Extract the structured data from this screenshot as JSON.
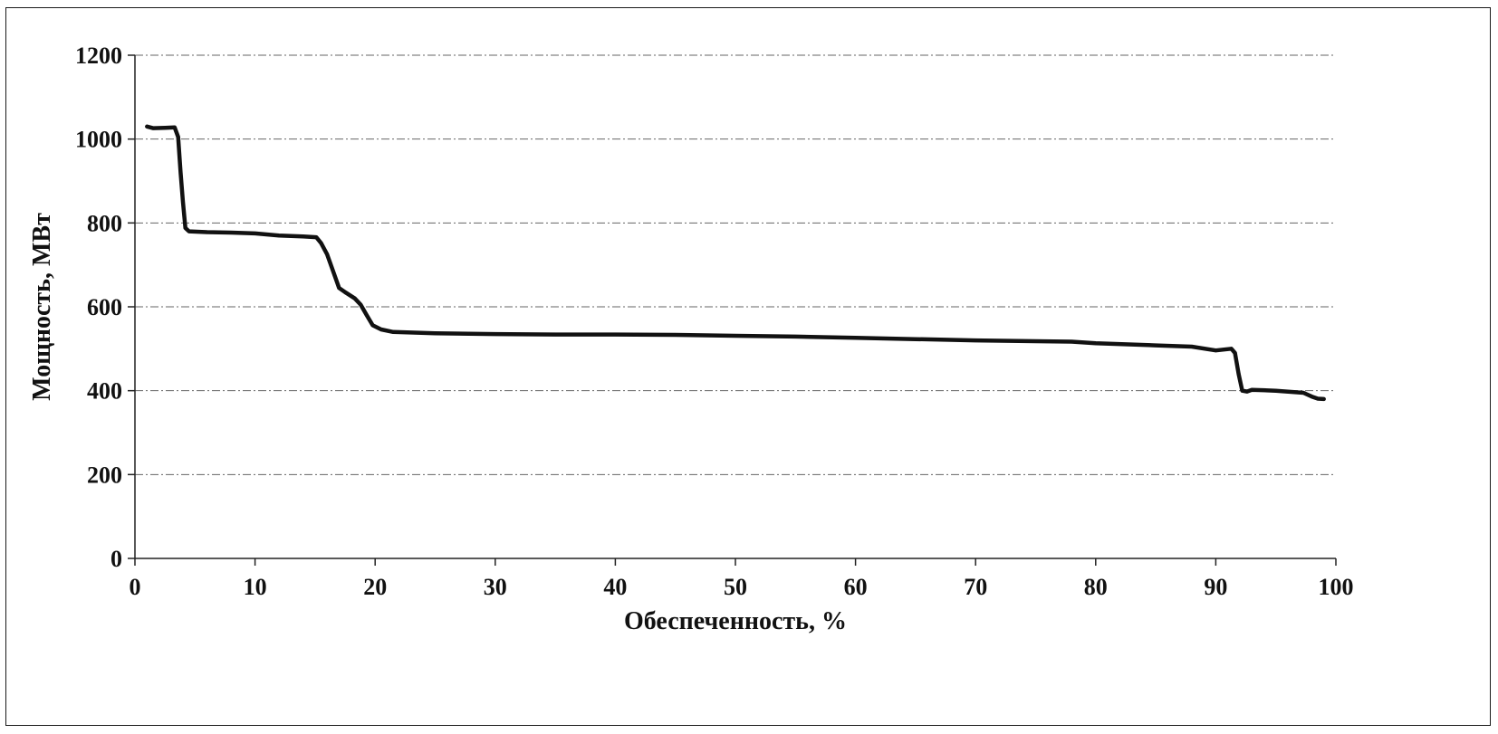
{
  "chart_data": {
    "type": "line",
    "title": "",
    "xlabel": "Обеспеченность, %",
    "ylabel": "Мощность, МВт",
    "xlim": [
      0,
      100
    ],
    "ylim": [
      0,
      1200
    ],
    "x_ticks": [
      0,
      10,
      20,
      30,
      40,
      50,
      60,
      70,
      80,
      90,
      100
    ],
    "y_ticks": [
      0,
      200,
      400,
      600,
      800,
      1000,
      1200
    ],
    "x_tick_labels": [
      "0",
      "10",
      "20",
      "30",
      "40",
      "50",
      "60",
      "70",
      "80",
      "90",
      "100"
    ],
    "y_tick_labels": [
      "0",
      "200",
      "400",
      "600",
      "800",
      "1000",
      "1200"
    ],
    "grid": "horizontal",
    "legend": "none",
    "series": [
      {
        "color": "#111111",
        "x": [
          1.0,
          1.5,
          2.5,
          3.3,
          3.6,
          3.8,
          4.0,
          4.2,
          4.5,
          6,
          8,
          10,
          12,
          14,
          15.1,
          15.5,
          16,
          16.5,
          17.0,
          17.5,
          18.3,
          18.8,
          19.3,
          19.8,
          20.5,
          21.5,
          25,
          30,
          35,
          40,
          45,
          50,
          55,
          60,
          65,
          70,
          75,
          78,
          80,
          85,
          88,
          90,
          91.3,
          91.6,
          91.9,
          92.2,
          92.6,
          93,
          95,
          97.3,
          98.0,
          98.5,
          99.0
        ],
        "y": [
          1030,
          1026,
          1027,
          1028,
          1005,
          920,
          850,
          788,
          780,
          778,
          777,
          775,
          770,
          768,
          766,
          752,
          725,
          685,
          645,
          635,
          620,
          605,
          580,
          556,
          546,
          540,
          537,
          535,
          534,
          534,
          533,
          531,
          529,
          526,
          523,
          520,
          518,
          517,
          513,
          508,
          505,
          496,
          500,
          490,
          440,
          400,
          398,
          402,
          400,
          395,
          386,
          381,
          380
        ]
      }
    ]
  }
}
